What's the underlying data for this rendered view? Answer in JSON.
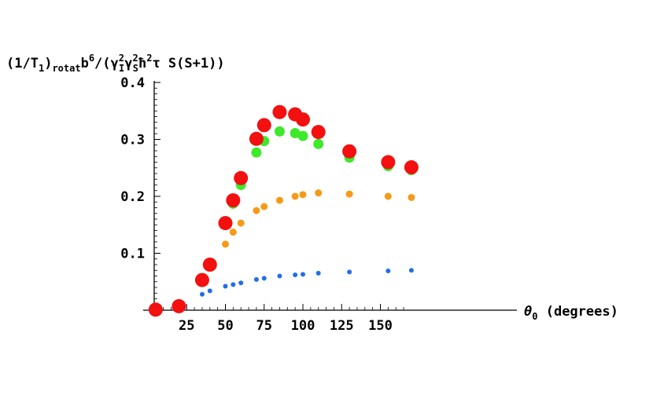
{
  "chart_data": {
    "type": "scatter",
    "title": "",
    "ylabel": {
      "prefix": "(1/T",
      "sub_1": "1",
      "mid_1": ")",
      "sub_2": "rotat",
      "mid_2": "b",
      "sup_1": "6",
      "mid_3": "/(γ",
      "sup_2": "2",
      "sub_3": "I",
      "mid_4": "γ",
      "sup_3": "2",
      "sub_4": "S",
      "mid_5": "ħ",
      "sup_4": "2",
      "suffix": "τ S(S+1))"
    },
    "xlabel": {
      "symbol": "θ",
      "sub": "0",
      "text": " (degrees)"
    },
    "xlim": [
      0,
      170
    ],
    "ylim": [
      0,
      0.4
    ],
    "x_ticks": [
      25,
      50,
      75,
      100,
      125,
      150
    ],
    "y_ticks": [
      0.1,
      0.2,
      0.3,
      0.4
    ],
    "x_tick_labels": [
      "25",
      "50",
      "75",
      "100",
      "125",
      "150"
    ],
    "y_tick_labels": [
      "0.1",
      "0.2",
      "0.3",
      "0.4"
    ],
    "grid": false,
    "legend": "none",
    "series": [
      {
        "color": "#1f6fe8",
        "marker_size": "small",
        "x": [
          35,
          40,
          50,
          55,
          60,
          70,
          75,
          85,
          95,
          100,
          110,
          130,
          155,
          170
        ],
        "y": [
          0.028,
          0.034,
          0.042,
          0.045,
          0.048,
          0.054,
          0.056,
          0.06,
          0.062,
          0.063,
          0.065,
          0.067,
          0.069,
          0.07
        ]
      },
      {
        "color": "#f59a18",
        "marker_size": "medium",
        "x": [
          40,
          50,
          55,
          60,
          70,
          75,
          85,
          95,
          100,
          110,
          130,
          155,
          170
        ],
        "y": [
          0.075,
          0.116,
          0.137,
          0.153,
          0.175,
          0.182,
          0.193,
          0.2,
          0.203,
          0.206,
          0.204,
          0.2,
          0.198
        ]
      },
      {
        "color": "#3ee82a",
        "marker_size": "large",
        "x": [
          35,
          40,
          50,
          55,
          60,
          70,
          75,
          85,
          95,
          100,
          110,
          130,
          155,
          170
        ],
        "y": [
          0.053,
          0.078,
          0.15,
          0.187,
          0.22,
          0.277,
          0.297,
          0.314,
          0.311,
          0.306,
          0.292,
          0.268,
          0.253,
          0.246
        ]
      },
      {
        "color": "#f21010",
        "marker_size": "xlarge",
        "x": [
          5,
          20,
          35,
          40,
          50,
          55,
          60,
          70,
          75,
          85,
          95,
          100,
          110,
          130,
          155,
          170
        ],
        "y": [
          0.001,
          0.007,
          0.053,
          0.08,
          0.153,
          0.193,
          0.232,
          0.301,
          0.325,
          0.348,
          0.344,
          0.335,
          0.313,
          0.279,
          0.26,
          0.251
        ]
      }
    ]
  }
}
